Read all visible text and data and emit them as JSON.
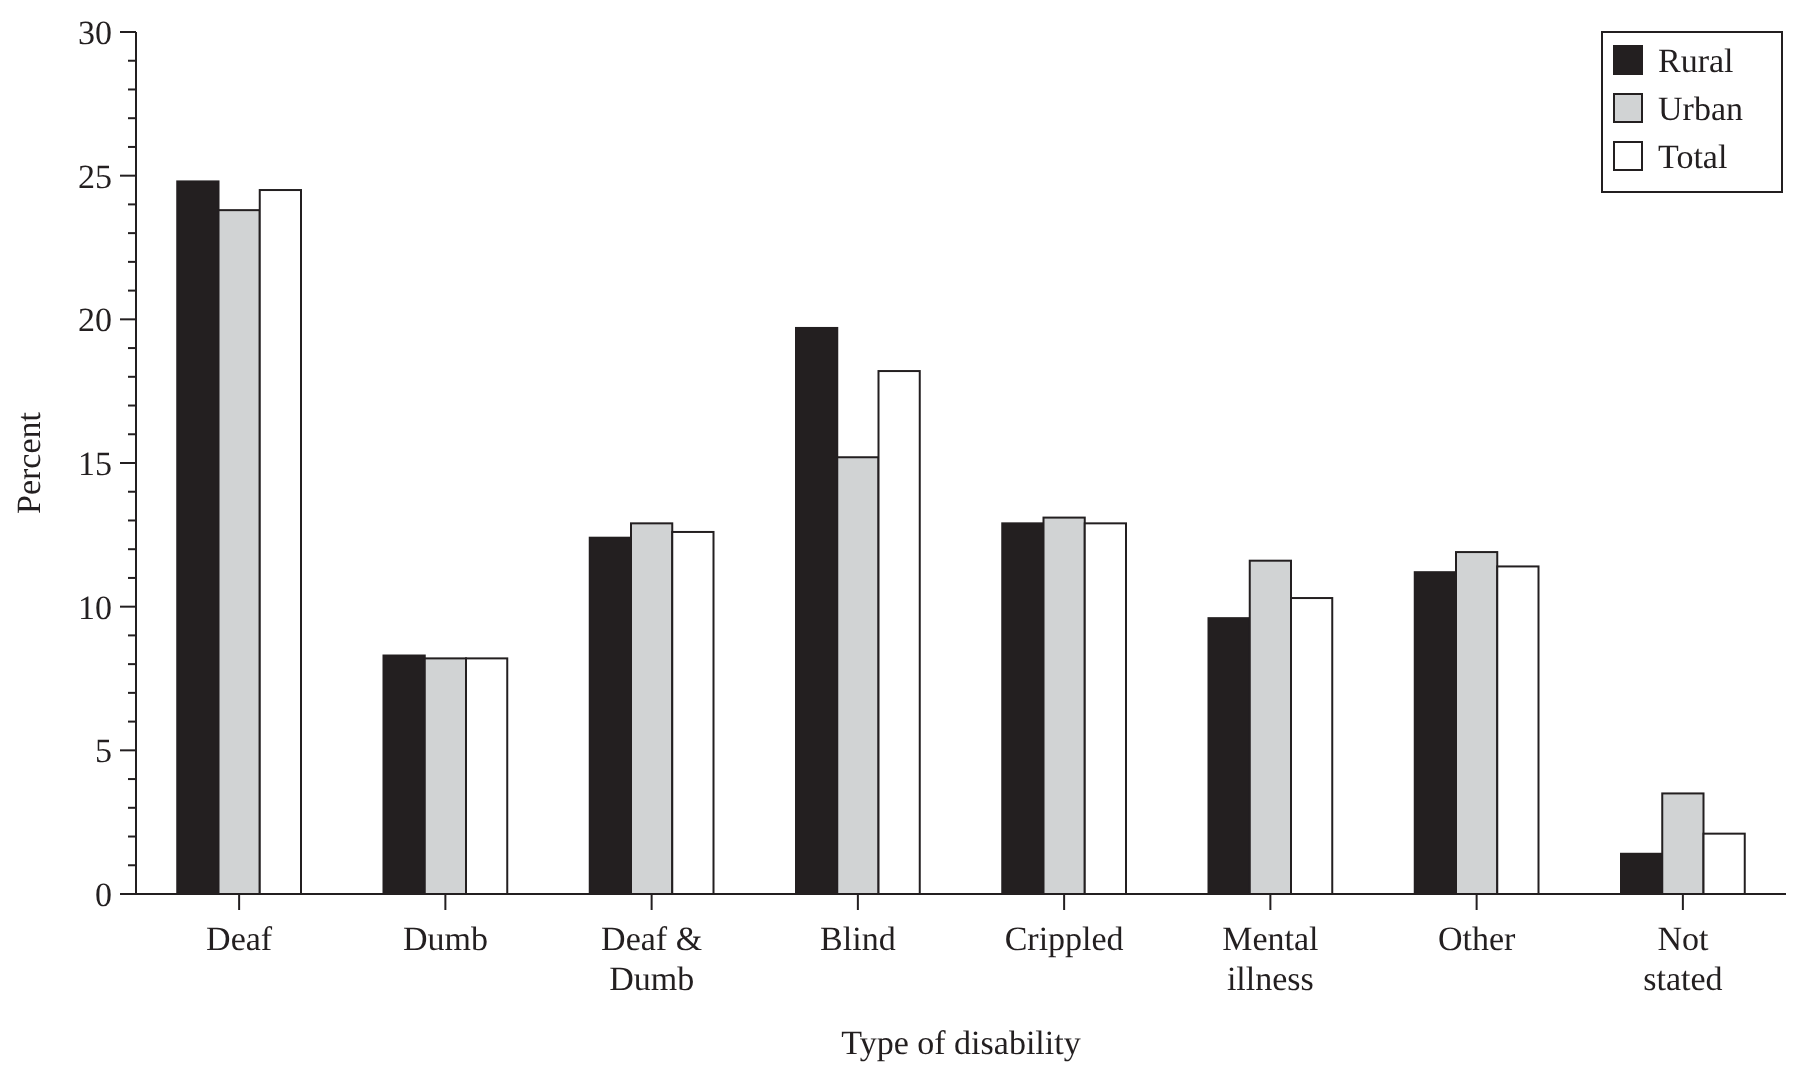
{
  "chart_data": {
    "type": "bar",
    "xlabel": "Type of disability",
    "ylabel": "Percent",
    "categories": [
      "Deaf",
      "Dumb",
      "Deaf & Dumb",
      "Blind",
      "Crippled",
      "Mental illness",
      "Other",
      "Not stated"
    ],
    "series": [
      {
        "name": "Rural",
        "color": "#231f20",
        "values": [
          24.8,
          8.3,
          12.4,
          19.7,
          12.9,
          9.6,
          11.2,
          1.4
        ]
      },
      {
        "name": "Urban",
        "color": "#d1d3d4",
        "values": [
          23.8,
          8.2,
          12.9,
          15.2,
          13.1,
          11.6,
          11.9,
          3.5
        ]
      },
      {
        "name": "Total",
        "color": "#ffffff",
        "values": [
          24.5,
          8.2,
          12.6,
          18.2,
          12.9,
          10.3,
          11.4,
          2.1
        ]
      }
    ],
    "ylim": [
      0,
      30
    ],
    "yticks": [
      0,
      {
        "value": 1,
        "label": null
      },
      {
        "value": 2,
        "label": null
      },
      {
        "value": 3,
        "label": null
      },
      {
        "value": 4,
        "label": null
      },
      5,
      {
        "value": 6,
        "label": null
      },
      {
        "value": 7,
        "label": null
      },
      {
        "value": 8,
        "label": null
      },
      {
        "value": 9,
        "label": null
      },
      10,
      {
        "value": 11,
        "label": null
      },
      {
        "value": 12,
        "label": null
      },
      {
        "value": 13,
        "label": null
      },
      {
        "value": 14,
        "label": null
      },
      15,
      {
        "value": 16,
        "label": null
      },
      {
        "value": 17,
        "label": null
      },
      {
        "value": 18,
        "label": null
      },
      {
        "value": 19,
        "label": null
      },
      20,
      {
        "value": 21,
        "label": null
      },
      {
        "value": 22,
        "label": null
      },
      {
        "value": 23,
        "label": null
      },
      {
        "value": 24,
        "label": null
      },
      25,
      {
        "value": 26,
        "label": null
      },
      {
        "value": 27,
        "label": null
      },
      {
        "value": 28,
        "label": null
      },
      {
        "value": 29,
        "label": null
      },
      30
    ],
    "grid": false,
    "legend": "top right"
  }
}
